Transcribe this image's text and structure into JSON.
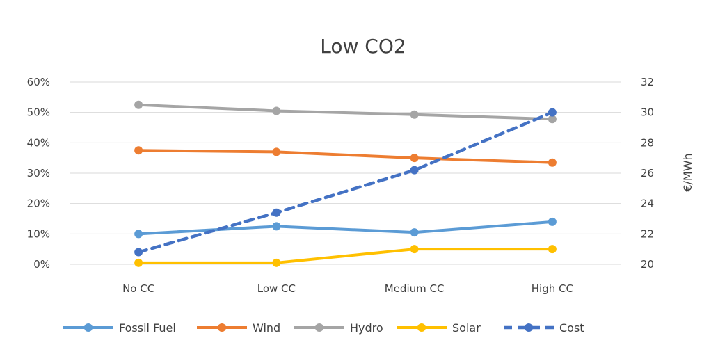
{
  "chart_data": {
    "type": "line",
    "title": "Low CO2",
    "categories": [
      "No CC",
      "Low CC",
      "Medium CC",
      "High CC"
    ],
    "y_left": {
      "ticks": [
        "0%",
        "10%",
        "20%",
        "30%",
        "40%",
        "50%",
        "60%"
      ],
      "ylim": [
        0,
        0.6
      ],
      "label": ""
    },
    "y_right": {
      "ticks": [
        "20",
        "22",
        "24",
        "26",
        "28",
        "30",
        "32"
      ],
      "ylim": [
        20,
        32
      ],
      "label": "€/MWh"
    },
    "series": [
      {
        "name": "Fossil Fuel",
        "axis": "left",
        "color": "#5B9BD5",
        "dashed": false,
        "values": [
          0.1,
          0.125,
          0.105,
          0.14
        ]
      },
      {
        "name": "Wind",
        "axis": "left",
        "color": "#ED7D31",
        "dashed": false,
        "values": [
          0.375,
          0.37,
          0.35,
          0.335
        ]
      },
      {
        "name": "Hydro",
        "axis": "left",
        "color": "#A5A5A5",
        "dashed": false,
        "values": [
          0.525,
          0.505,
          0.493,
          0.478
        ]
      },
      {
        "name": "Solar",
        "axis": "left",
        "color": "#FFC000",
        "dashed": false,
        "values": [
          0.005,
          0.005,
          0.05,
          0.05
        ]
      },
      {
        "name": "Cost",
        "axis": "right",
        "color": "#4472C4",
        "dashed": true,
        "values": [
          20.8,
          23.4,
          26.2,
          30.0
        ]
      }
    ],
    "grid": true,
    "legend_position": "bottom"
  }
}
